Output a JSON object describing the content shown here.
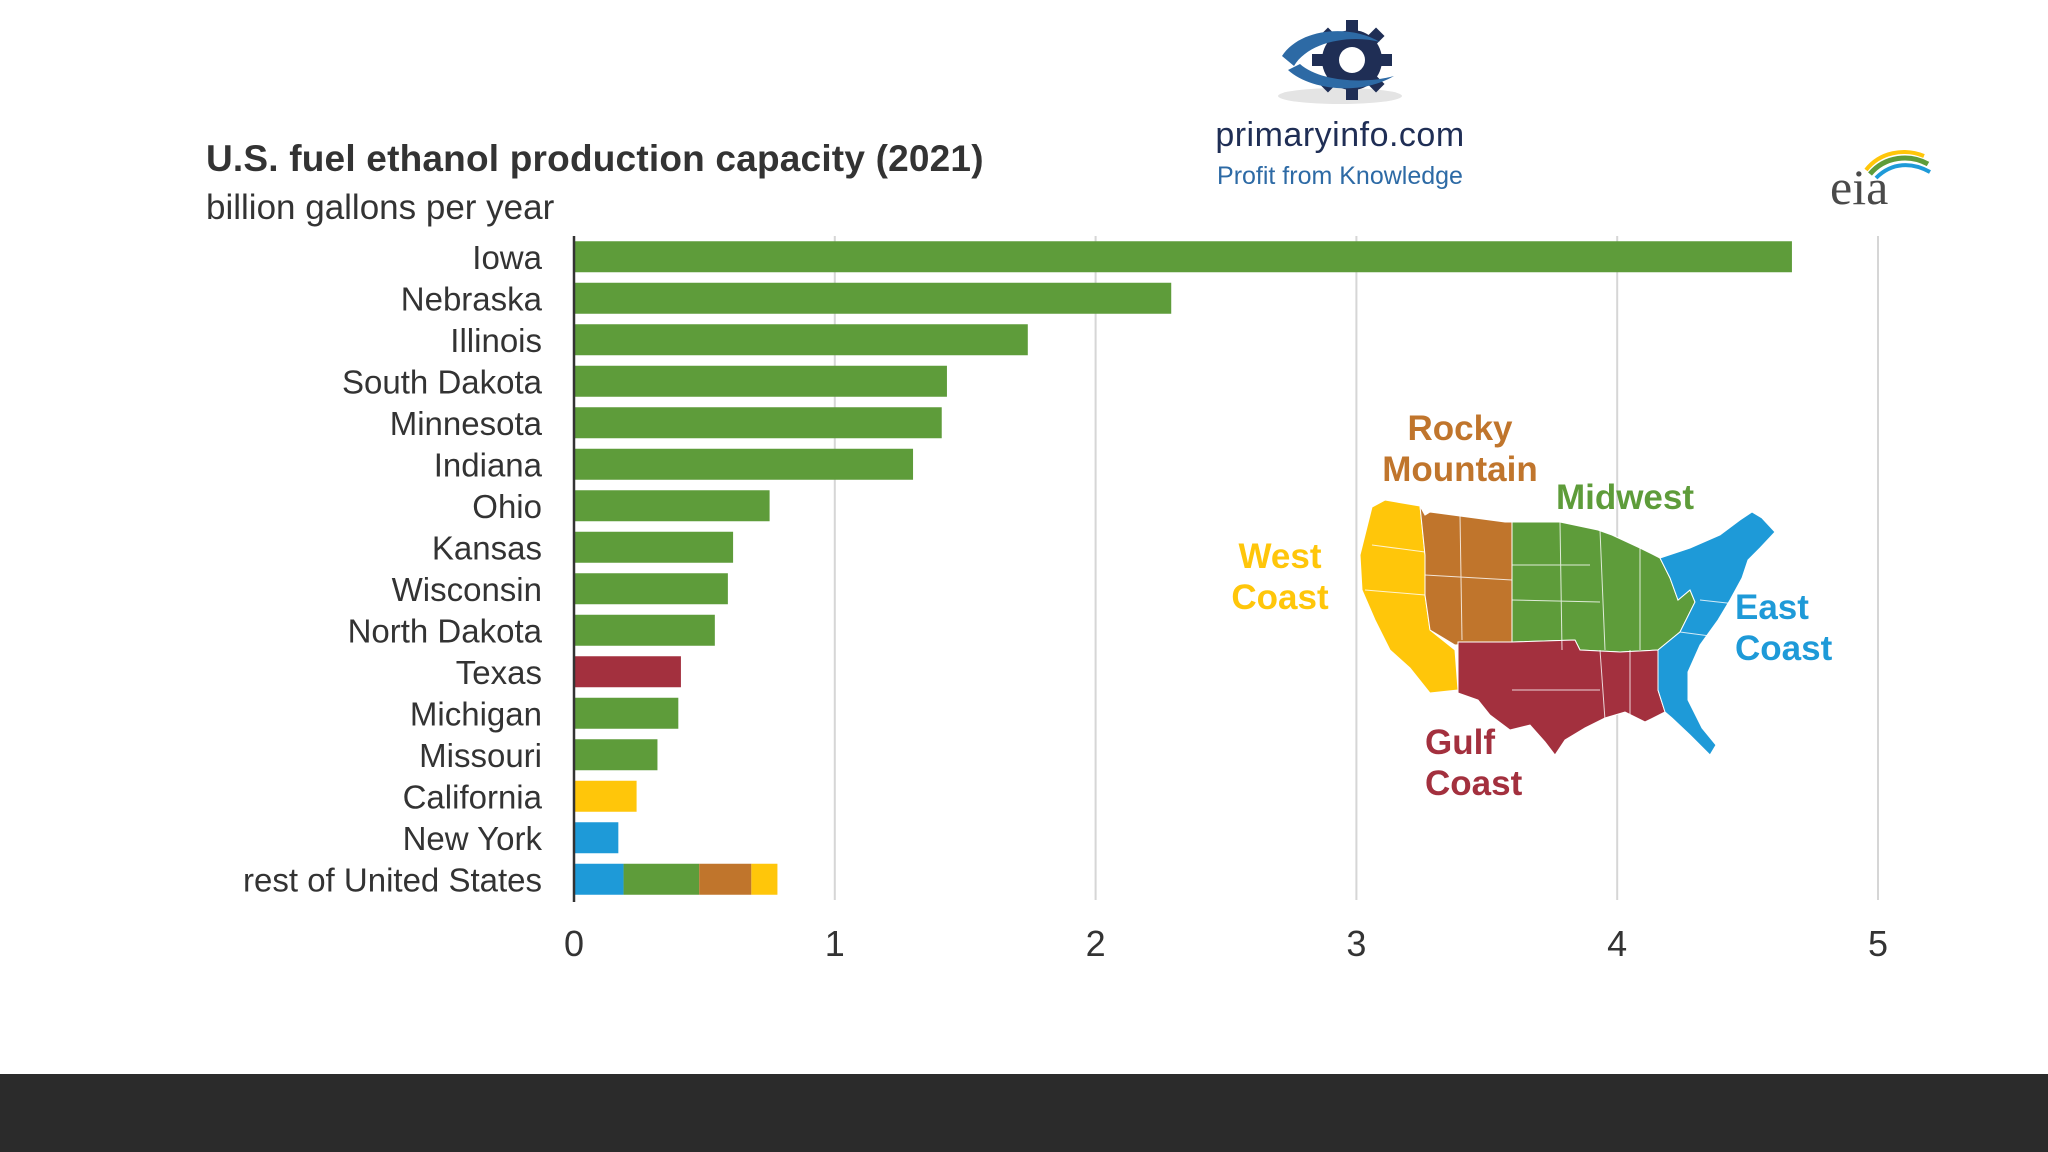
{
  "colors": {
    "midwest": "#5e9c3a",
    "gulf": "#a3303e",
    "west": "#ffc60a",
    "east": "#1e9ad8",
    "rocky": "#c0752c",
    "grid": "#d6d6d6",
    "axis": "#333333",
    "text": "#333333"
  },
  "brand": {
    "name": "primaryinfo.com",
    "tagline": "Profit from Knowledge"
  },
  "eia_logo": "eia",
  "chart_data": {
    "type": "bar",
    "orientation": "horizontal",
    "stacked": true,
    "title": "U.S. fuel ethanol production capacity (2021)",
    "subtitle": "billion gallons per year",
    "xlim": [
      0,
      5
    ],
    "xticks": [
      0,
      1,
      2,
      3,
      4,
      5
    ],
    "grid": true,
    "categories": [
      "Iowa",
      "Nebraska",
      "Illinois",
      "South Dakota",
      "Minnesota",
      "Indiana",
      "Ohio",
      "Kansas",
      "Wisconsin",
      "North Dakota",
      "Texas",
      "Michigan",
      "Missouri",
      "California",
      "New York",
      "rest of United States"
    ],
    "series": [
      {
        "name": "East Coast",
        "color_key": "east",
        "values": [
          0,
          0,
          0,
          0,
          0,
          0,
          0,
          0,
          0,
          0,
          0,
          0,
          0,
          0,
          0.17,
          0.19
        ]
      },
      {
        "name": "Midwest",
        "color_key": "midwest",
        "values": [
          4.67,
          2.29,
          1.74,
          1.43,
          1.41,
          1.3,
          0.75,
          0.61,
          0.59,
          0.54,
          0,
          0.4,
          0.32,
          0,
          0,
          0.29
        ]
      },
      {
        "name": "Gulf Coast",
        "color_key": "gulf",
        "values": [
          0,
          0,
          0,
          0,
          0,
          0,
          0,
          0,
          0,
          0,
          0.41,
          0,
          0,
          0,
          0,
          0
        ]
      },
      {
        "name": "Rocky Mountain",
        "color_key": "rocky",
        "values": [
          0,
          0,
          0,
          0,
          0,
          0,
          0,
          0,
          0,
          0,
          0,
          0,
          0,
          0,
          0,
          0.2
        ]
      },
      {
        "name": "West Coast",
        "color_key": "west",
        "values": [
          0,
          0,
          0,
          0,
          0,
          0,
          0,
          0,
          0,
          0,
          0,
          0,
          0,
          0.24,
          0,
          0.1
        ]
      }
    ]
  },
  "map": {
    "regions": [
      {
        "key": "rocky",
        "label_lines": [
          "Rocky",
          "Mountain"
        ]
      },
      {
        "key": "midwest",
        "label_lines": [
          "Midwest"
        ]
      },
      {
        "key": "west",
        "label_lines": [
          "West",
          "Coast"
        ]
      },
      {
        "key": "east",
        "label_lines": [
          "East",
          "Coast"
        ]
      },
      {
        "key": "gulf",
        "label_lines": [
          "Gulf",
          "Coast"
        ]
      }
    ]
  }
}
